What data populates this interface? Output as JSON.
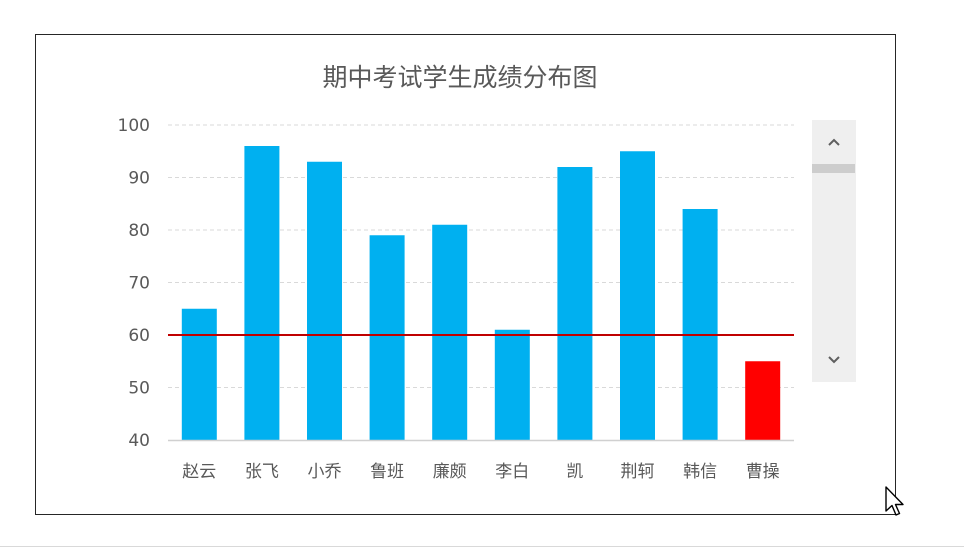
{
  "chart_data": {
    "type": "bar",
    "title": "期中考试学生成绩分布图",
    "categories": [
      "赵云",
      "张飞",
      "小乔",
      "鲁班",
      "廉颇",
      "李白",
      "凯",
      "荆轲",
      "韩信",
      "曹操"
    ],
    "values": [
      65,
      96,
      93,
      79,
      81,
      61,
      92,
      95,
      84,
      55
    ],
    "ylim": [
      40,
      100
    ],
    "yticks": [
      40,
      50,
      60,
      70,
      80,
      90,
      100
    ],
    "xlabel": "",
    "ylabel": "",
    "reference_line": 60,
    "grid": true,
    "legend": "none",
    "bar_color": "#00B0F0",
    "highlight_color": "#FF0000",
    "highlight_rule": "below_reference",
    "reference_line_color": "#C00000",
    "grid_color": "#D9D9D9",
    "text_color": "#595959"
  },
  "scrollbar": {
    "up_icon": "chevron-up-icon",
    "down_icon": "chevron-down-icon"
  },
  "cursor": {
    "icon": "mouse-pointer-icon"
  }
}
